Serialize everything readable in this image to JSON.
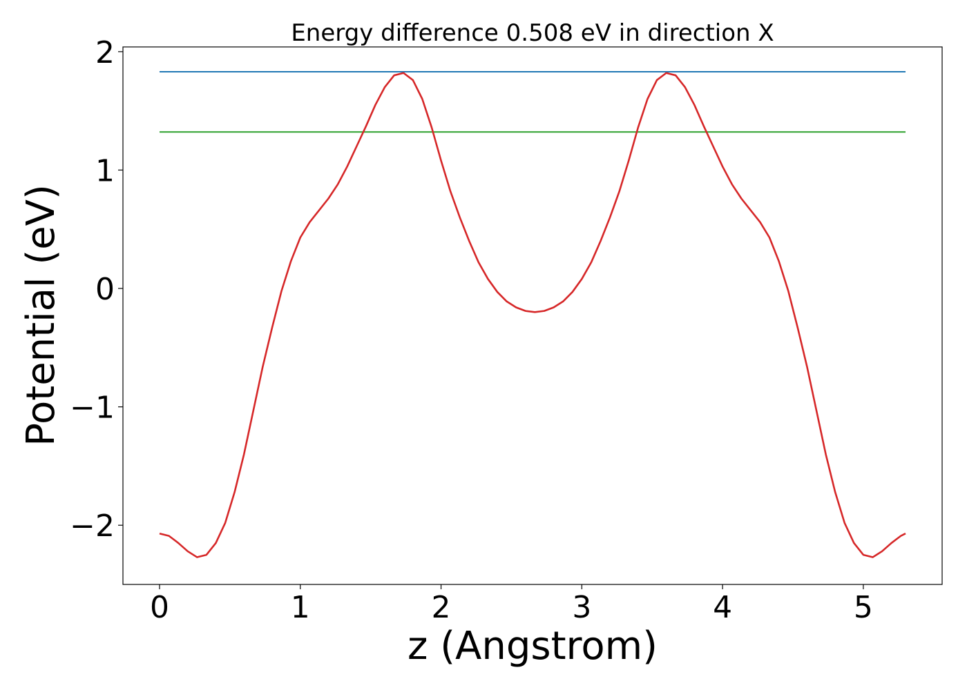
{
  "chart_data": {
    "type": "line",
    "title": "Energy difference 0.508 eV in direction X",
    "xlabel": "z (Angstrom)",
    "ylabel": "Potential (eV)",
    "xlim": [
      -0.26,
      5.56
    ],
    "ylim": [
      -2.5,
      2.04
    ],
    "xticks": [
      0,
      1,
      2,
      3,
      4,
      5
    ],
    "xtick_labels": [
      "0",
      "1",
      "2",
      "3",
      "4",
      "5"
    ],
    "yticks": [
      -2,
      -1,
      0,
      1,
      2
    ],
    "ytick_labels": [
      "−2",
      "−1",
      "0",
      "1",
      "2"
    ],
    "grid": false,
    "series": [
      {
        "color": "#d62728",
        "x": [
          0,
          0.0667,
          0.1333,
          0.2,
          0.2667,
          0.3333,
          0.4,
          0.4667,
          0.5333,
          0.6,
          0.6667,
          0.7333,
          0.8,
          0.8667,
          0.9333,
          1.0,
          1.0667,
          1.1333,
          1.2,
          1.2667,
          1.3333,
          1.4,
          1.4667,
          1.5333,
          1.6,
          1.6667,
          1.7333,
          1.8,
          1.8667,
          1.9333,
          2.0,
          2.0667,
          2.1333,
          2.2,
          2.2667,
          2.3333,
          2.4,
          2.4667,
          2.5333,
          2.6,
          2.6667,
          2.7333,
          2.8,
          2.8667,
          2.9333,
          3.0,
          3.0667,
          3.1333,
          3.2,
          3.2667,
          3.3333,
          3.4,
          3.4667,
          3.5333,
          3.6,
          3.6667,
          3.7333,
          3.8,
          3.8667,
          3.9333,
          4.0,
          4.0667,
          4.1333,
          4.2,
          4.2667,
          4.3333,
          4.4,
          4.4667,
          4.5333,
          4.6,
          4.6667,
          4.7333,
          4.8,
          4.8667,
          4.9333,
          5.0,
          5.0667,
          5.1333,
          5.2,
          5.2667,
          5.3
        ],
        "y": [
          -2.07,
          -2.09,
          -2.15,
          -2.22,
          -2.27,
          -2.25,
          -2.15,
          -1.98,
          -1.72,
          -1.4,
          -1.03,
          -0.66,
          -0.33,
          -0.02,
          0.23,
          0.43,
          0.56,
          0.66,
          0.76,
          0.88,
          1.03,
          1.2,
          1.37,
          1.55,
          1.7,
          1.8,
          1.82,
          1.76,
          1.6,
          1.36,
          1.08,
          0.82,
          0.6,
          0.4,
          0.22,
          0.08,
          -0.03,
          -0.11,
          -0.16,
          -0.19,
          -0.2,
          -0.19,
          -0.16,
          -0.11,
          -0.03,
          0.08,
          0.22,
          0.4,
          0.6,
          0.82,
          1.08,
          1.36,
          1.6,
          1.76,
          1.82,
          1.8,
          1.7,
          1.55,
          1.37,
          1.2,
          1.03,
          0.88,
          0.76,
          0.66,
          0.56,
          0.43,
          0.23,
          -0.02,
          -0.33,
          -0.66,
          -1.03,
          -1.4,
          -1.72,
          -1.98,
          -2.15,
          -2.25,
          -2.27,
          -2.22,
          -2.15,
          -2.09,
          -2.07
        ]
      },
      {
        "color": "#1f77b4",
        "x": [
          0,
          5.3
        ],
        "y": [
          1.83,
          1.83
        ]
      },
      {
        "color": "#2ca02c",
        "x": [
          0,
          5.3
        ],
        "y": [
          1.322,
          1.322
        ]
      }
    ]
  }
}
